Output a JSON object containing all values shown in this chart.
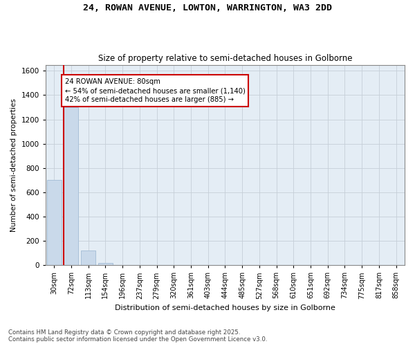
{
  "title": "24, ROWAN AVENUE, LOWTON, WARRINGTON, WA3 2DD",
  "subtitle": "Size of property relative to semi-detached houses in Golborne",
  "xlabel": "Distribution of semi-detached houses by size in Golborne",
  "ylabel": "Number of semi-detached properties",
  "categories": [
    "30sqm",
    "72sqm",
    "113sqm",
    "154sqm",
    "196sqm",
    "237sqm",
    "279sqm",
    "320sqm",
    "361sqm",
    "403sqm",
    "444sqm",
    "485sqm",
    "527sqm",
    "568sqm",
    "610sqm",
    "651sqm",
    "692sqm",
    "734sqm",
    "775sqm",
    "817sqm",
    "858sqm"
  ],
  "values": [
    700,
    1300,
    120,
    20,
    0,
    0,
    0,
    0,
    0,
    0,
    0,
    0,
    0,
    0,
    0,
    0,
    0,
    0,
    0,
    0,
    0
  ],
  "bar_color": "#c9d9ea",
  "bar_edge_color": "#a8c0d8",
  "property_line_color": "#cc0000",
  "property_line_x": 0.575,
  "property_size": "80sqm",
  "pct_smaller": 54,
  "pct_larger": 42,
  "n_smaller": "1,140",
  "n_larger": "885",
  "annotation_box_color": "#cc0000",
  "annotation_text_line1": "24 ROWAN AVENUE: 80sqm",
  "annotation_text_line2": "← 54% of semi-detached houses are smaller (1,140)",
  "annotation_text_line3": "42% of semi-detached houses are larger (885) →",
  "ylim": [
    0,
    1650
  ],
  "yticks": [
    0,
    200,
    400,
    600,
    800,
    1000,
    1200,
    1400,
    1600
  ],
  "background_color": "#ffffff",
  "axes_bg_color": "#e4edf5",
  "grid_color": "#c5cfd8",
  "footer_line1": "Contains HM Land Registry data © Crown copyright and database right 2025.",
  "footer_line2": "Contains public sector information licensed under the Open Government Licence v3.0."
}
